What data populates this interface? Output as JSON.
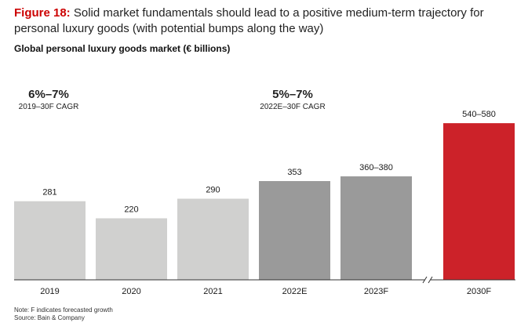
{
  "figure": {
    "label": "Figure 18:",
    "title": "Solid market fundamentals should lead to a positive medium-term trajectory for personal luxury goods (with potential bumps along the way)"
  },
  "subtitle": "Global personal luxury goods market (€ billions)",
  "chart_data": {
    "type": "bar",
    "categories": [
      "2019",
      "2020",
      "2021",
      "2022E",
      "2023F",
      "2030F"
    ],
    "values": [
      281,
      220,
      290,
      353,
      370,
      560
    ],
    "value_labels": [
      "281",
      "220",
      "290",
      "353",
      "360–380",
      "540–580"
    ],
    "bar_colors": [
      "#d0d0cf",
      "#d0d0cf",
      "#d0d0cf",
      "#9a9a9a",
      "#9a9a9a",
      "#cc2229"
    ],
    "axis_break_between": [
      "2023F",
      "2030F"
    ],
    "annotations": [
      {
        "value": "6%–7%",
        "label": "2019–30F CAGR"
      },
      {
        "value": "5%–7%",
        "label": "2022E–30F CAGR"
      }
    ],
    "ylim": [
      0,
      580
    ],
    "grid": false,
    "legend": "none"
  },
  "notes": {
    "note": "Note: F indicates forecasted growth",
    "source": "Source: Bain & Company"
  }
}
